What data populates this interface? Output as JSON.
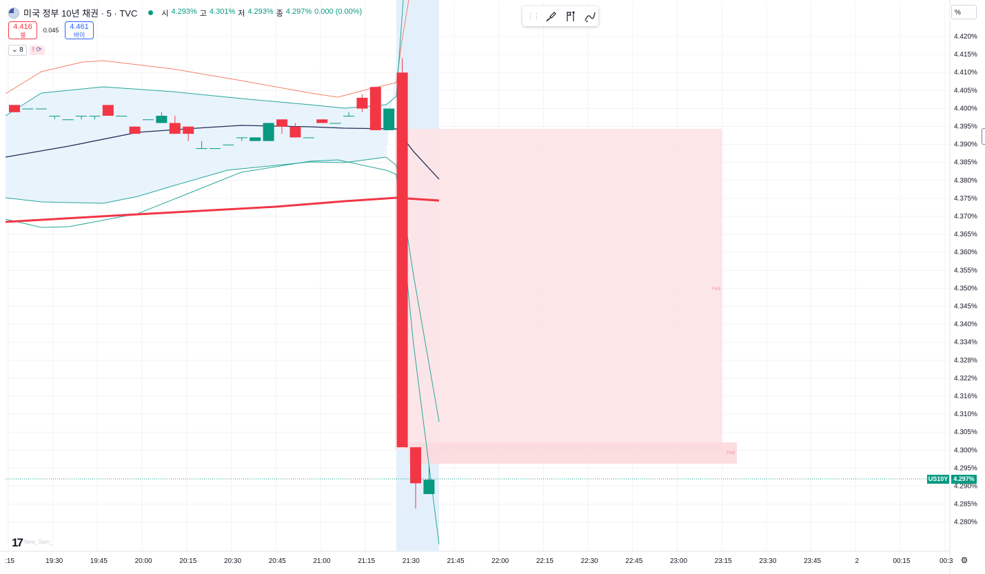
{
  "legend": {
    "symbol": "미국 정부 10년 채권 · 5 · TVC",
    "open_label": "시",
    "open": "4.293%",
    "high_label": "고",
    "high": "4.301%",
    "low_label": "저",
    "low": "4.293%",
    "close_label": "종",
    "close": "4.297%",
    "change": "0.000 (0.00%)"
  },
  "trade": {
    "sell_price": "4.416",
    "sell_label": "셀",
    "spread": "0.045",
    "buy_price": "4.461",
    "buy_label": "바이"
  },
  "indicators": {
    "count": "8",
    "warn": "!"
  },
  "scale_mode": "%",
  "colors": {
    "up": "#089981",
    "down": "#f23645",
    "bb_mid": "#1f2d55",
    "bb_inner": "#26a69a",
    "bb_outer": "#f57f6b",
    "ma": "#f23645"
  },
  "price_axis": {
    "ticks": [
      "4.420%",
      "4.415%",
      "4.410%",
      "4.405%",
      "4.400%",
      "4.395%",
      "4.390%",
      "4.385%",
      "4.380%",
      "4.375%",
      "4.370%",
      "4.365%",
      "4.360%",
      "4.355%",
      "4.350%",
      "4.345%",
      "4.340%",
      "4.334%",
      "4.328%",
      "4.322%",
      "4.316%",
      "4.310%",
      "4.305%",
      "4.300%",
      "4.295%",
      "4.290%",
      "4.285%",
      "4.280%"
    ]
  },
  "time_axis": {
    "ticks": [
      ":15",
      "19:30",
      "19:45",
      "20:00",
      "20:15",
      "20:30",
      "20:45",
      "21:00",
      "21:15",
      "21:30",
      "21:45",
      "22:00",
      "22:15",
      "22:30",
      "22:45",
      "23:00",
      "23:15",
      "23:30",
      "23:45",
      "2",
      "00:15",
      "00:3"
    ]
  },
  "last_price": {
    "symbol": "US10Y",
    "value": "4.297%"
  },
  "fvg_label": "FVG",
  "watermark": "New_Sam_",
  "chart_data": {
    "type": "candlestick",
    "unit": "%",
    "x": [
      "19:05",
      "19:10",
      "19:15",
      "19:20",
      "19:25",
      "19:30",
      "19:35",
      "19:40",
      "19:45",
      "19:50",
      "19:55",
      "20:00",
      "20:05",
      "20:10",
      "20:15",
      "20:20",
      "20:25",
      "20:30",
      "20:35",
      "20:40",
      "20:45",
      "20:50",
      "20:55",
      "21:00",
      "21:05",
      "21:10",
      "21:15",
      "21:20",
      "21:25",
      "21:30",
      "21:35",
      "21:40"
    ],
    "open": [
      4.401,
      4.4,
      4.4,
      4.398,
      4.397,
      4.398,
      4.398,
      4.401,
      4.398,
      4.395,
      4.397,
      4.396,
      4.396,
      4.395,
      4.389,
      4.389,
      4.39,
      4.392,
      4.391,
      4.391,
      4.397,
      4.395,
      4.392,
      4.397,
      4.396,
      4.398,
      4.403,
      4.406,
      4.394,
      4.41,
      4.306,
      4.293
    ],
    "high": [
      4.401,
      4.4,
      4.4,
      4.398,
      4.397,
      4.398,
      4.398,
      4.401,
      4.398,
      4.395,
      4.397,
      4.399,
      4.398,
      4.395,
      4.391,
      4.389,
      4.39,
      4.392,
      4.392,
      4.396,
      4.397,
      4.396,
      4.392,
      4.397,
      4.396,
      4.399,
      4.404,
      4.406,
      4.4,
      4.414,
      4.306,
      4.301
    ],
    "low": [
      4.399,
      4.4,
      4.4,
      4.397,
      4.397,
      4.397,
      4.397,
      4.398,
      4.398,
      4.393,
      4.397,
      4.396,
      4.393,
      4.391,
      4.389,
      4.389,
      4.39,
      4.391,
      4.391,
      4.391,
      4.393,
      4.392,
      4.392,
      4.396,
      4.396,
      4.398,
      4.399,
      4.394,
      4.394,
      4.306,
      4.289,
      4.293
    ],
    "close": [
      4.399,
      4.4,
      4.4,
      4.398,
      4.397,
      4.398,
      4.398,
      4.398,
      4.398,
      4.393,
      4.397,
      4.398,
      4.393,
      4.393,
      4.389,
      4.389,
      4.39,
      4.392,
      4.392,
      4.396,
      4.395,
      4.392,
      4.392,
      4.396,
      4.396,
      4.398,
      4.4,
      4.394,
      4.4,
      4.306,
      4.296,
      4.297
    ]
  }
}
